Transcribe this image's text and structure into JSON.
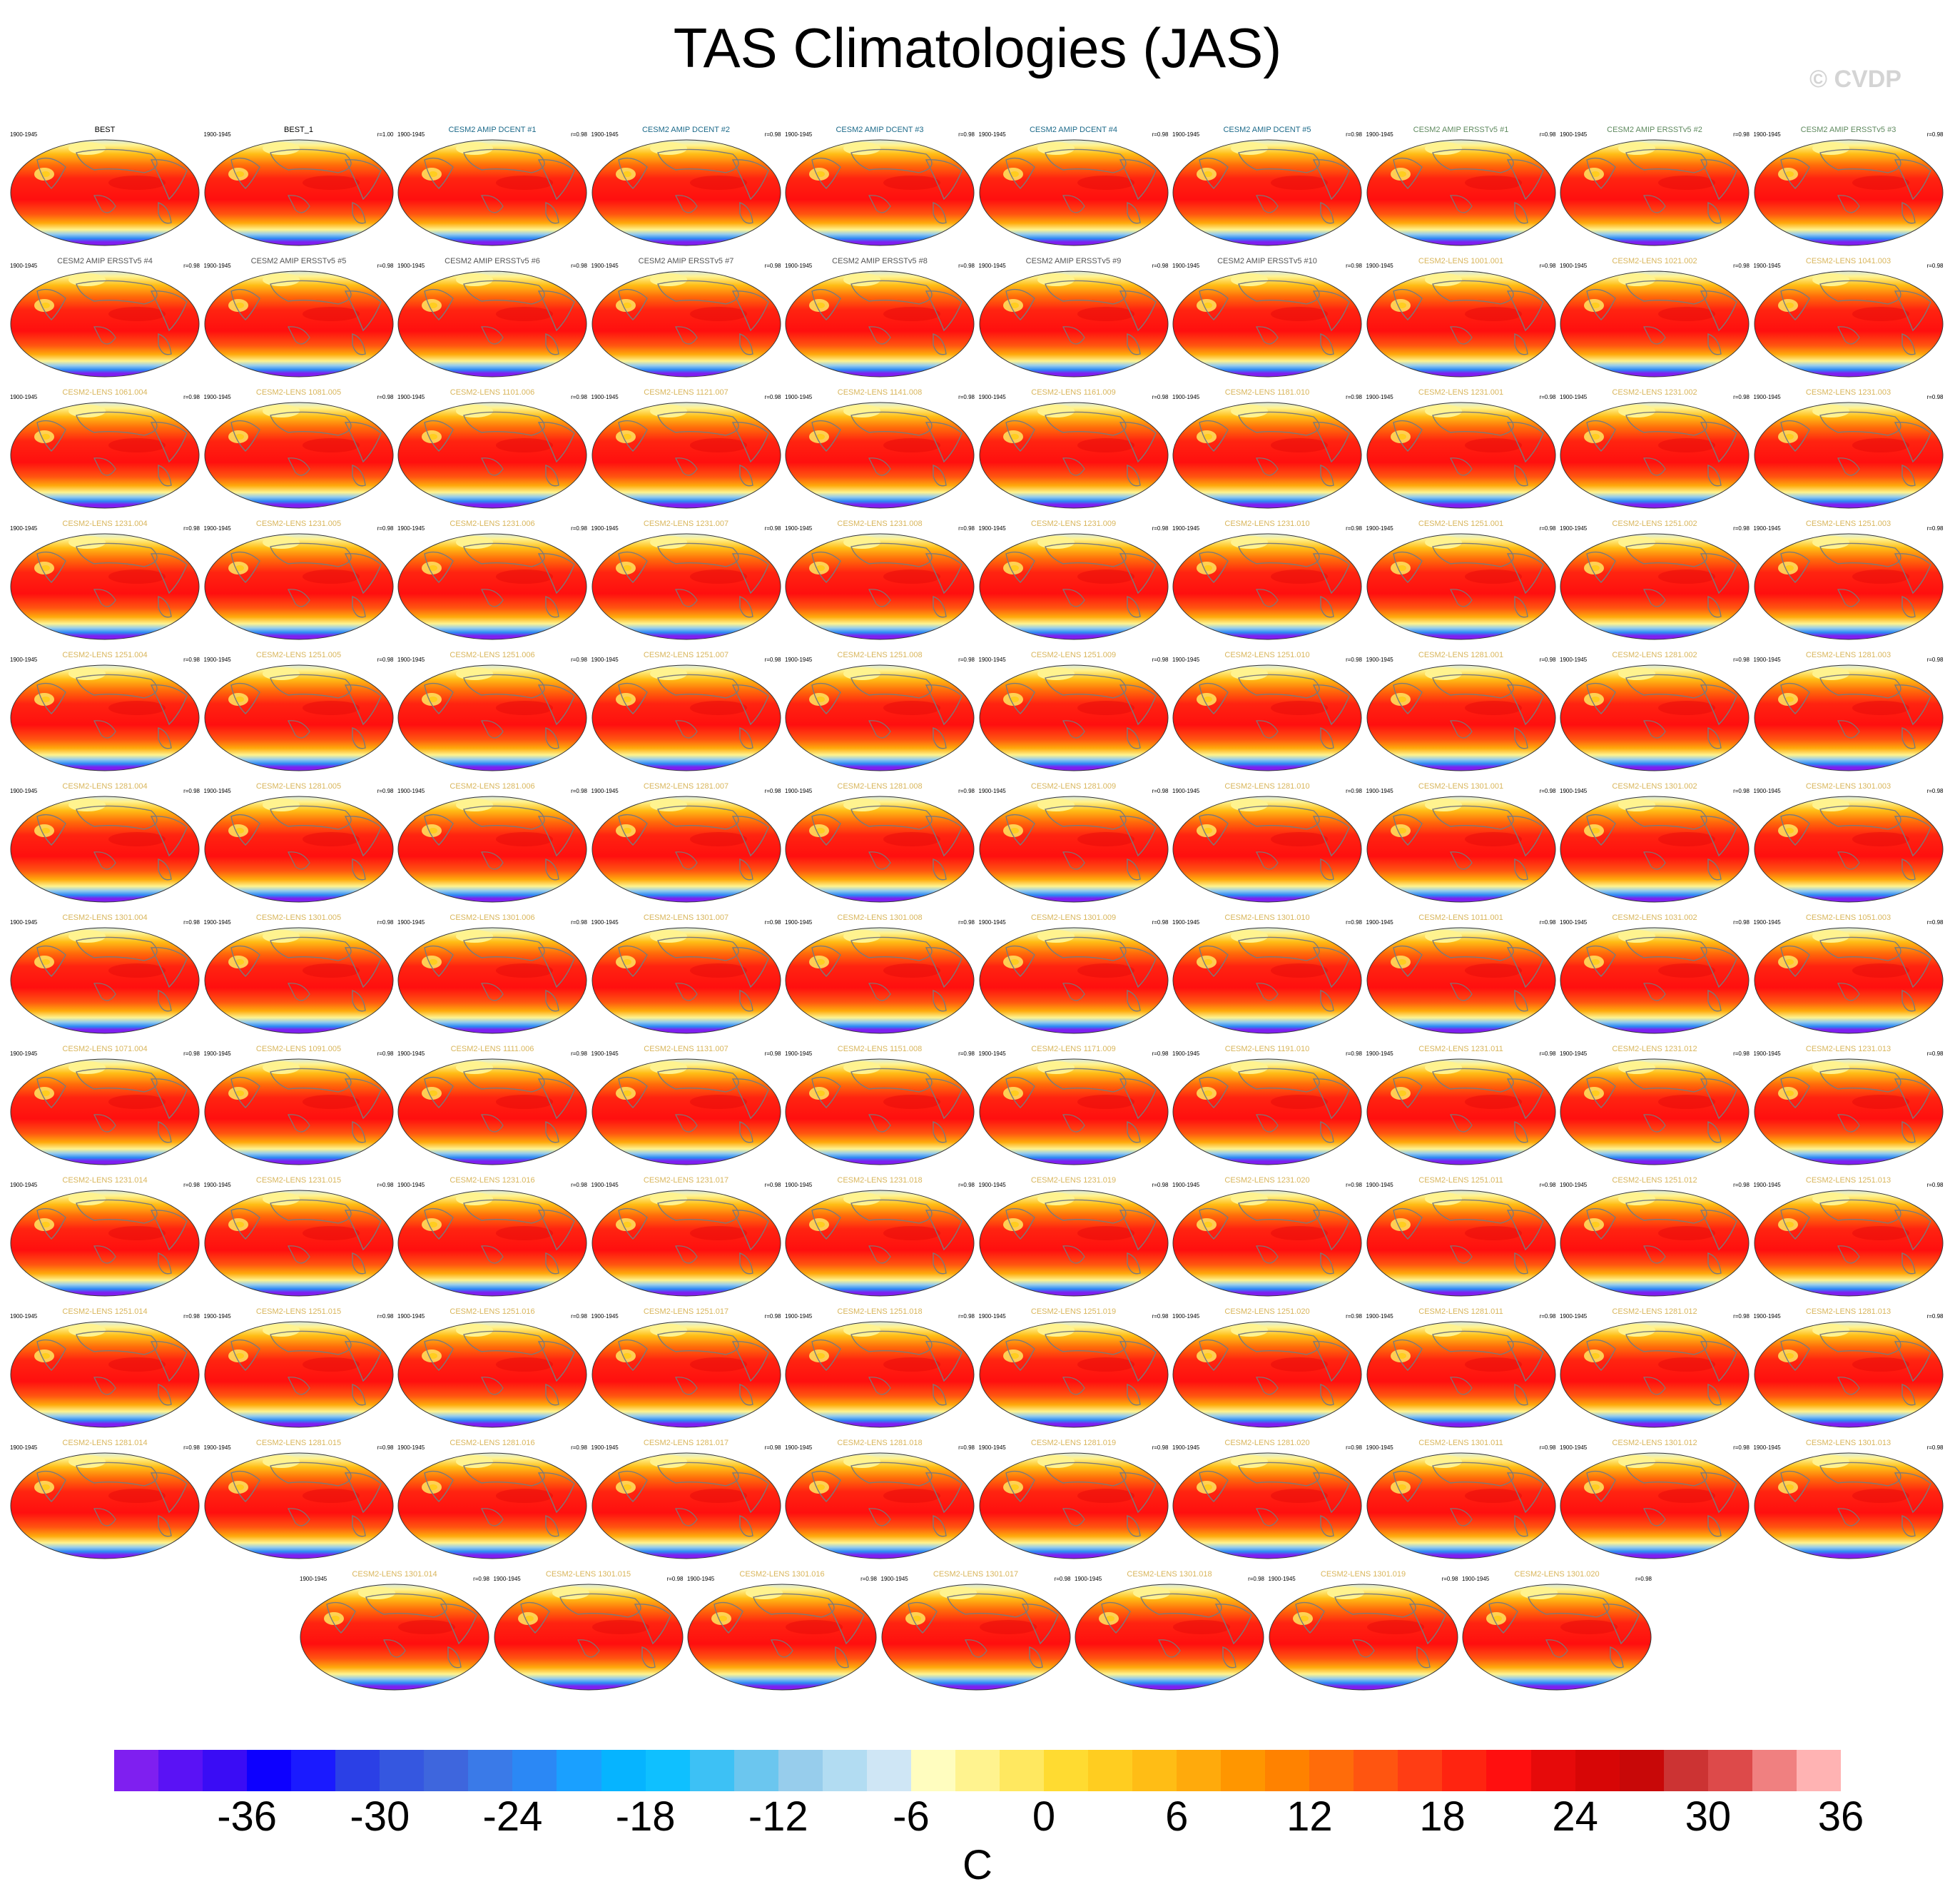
{
  "title": "TAS Climatologies (JAS)",
  "credit": "© CVDP",
  "period": "1900-1945",
  "panels": [
    {
      "title": "BEST",
      "r": "",
      "kind": "obs"
    },
    {
      "title": "BEST_1",
      "r": "r=1.00",
      "kind": "obs"
    },
    {
      "title": "CESM2 AMIP DCENT #1",
      "r": "r=0.98",
      "kind": "dcent"
    },
    {
      "title": "CESM2 AMIP DCENT #2",
      "r": "r=0.98",
      "kind": "dcent"
    },
    {
      "title": "CESM2 AMIP DCENT #3",
      "r": "r=0.98",
      "kind": "dcent"
    },
    {
      "title": "CESM2 AMIP DCENT #4",
      "r": "r=0.98",
      "kind": "dcent"
    },
    {
      "title": "CESM2 AMIP DCENT #5",
      "r": "r=0.98",
      "kind": "dcent"
    },
    {
      "title": "CESM2 AMIP ERSSTv5 #1",
      "r": "r=0.98",
      "kind": "ersst"
    },
    {
      "title": "CESM2 AMIP ERSSTv5 #2",
      "r": "r=0.98",
      "kind": "ersst"
    },
    {
      "title": "CESM2 AMIP ERSSTv5 #3",
      "r": "r=0.98",
      "kind": "ersst"
    },
    {
      "title": "CESM2 AMIP ERSSTv5 #4",
      "r": "r=0.98",
      "kind": "ersst2"
    },
    {
      "title": "CESM2 AMIP ERSSTv5 #5",
      "r": "r=0.98",
      "kind": "ersst2"
    },
    {
      "title": "CESM2 AMIP ERSSTv5 #6",
      "r": "r=0.98",
      "kind": "ersst2"
    },
    {
      "title": "CESM2 AMIP ERSSTv5 #7",
      "r": "r=0.98",
      "kind": "ersst2"
    },
    {
      "title": "CESM2 AMIP ERSSTv5 #8",
      "r": "r=0.98",
      "kind": "ersst2"
    },
    {
      "title": "CESM2 AMIP ERSSTv5 #9",
      "r": "r=0.98",
      "kind": "ersst2"
    },
    {
      "title": "CESM2 AMIP ERSSTv5 #10",
      "r": "r=0.98",
      "kind": "ersst2"
    },
    {
      "title": "CESM2-LENS 1001.001",
      "r": "r=0.98",
      "kind": "lens"
    },
    {
      "title": "CESM2-LENS 1021.002",
      "r": "r=0.98",
      "kind": "lens"
    },
    {
      "title": "CESM2-LENS 1041.003",
      "r": "r=0.98",
      "kind": "lens"
    },
    {
      "title": "CESM2-LENS 1061.004",
      "r": "r=0.98",
      "kind": "lens"
    },
    {
      "title": "CESM2-LENS 1081.005",
      "r": "r=0.98",
      "kind": "lens"
    },
    {
      "title": "CESM2-LENS 1101.006",
      "r": "r=0.98",
      "kind": "lens"
    },
    {
      "title": "CESM2-LENS 1121.007",
      "r": "r=0.98",
      "kind": "lens"
    },
    {
      "title": "CESM2-LENS 1141.008",
      "r": "r=0.98",
      "kind": "lens"
    },
    {
      "title": "CESM2-LENS 1161.009",
      "r": "r=0.98",
      "kind": "lens"
    },
    {
      "title": "CESM2-LENS 1181.010",
      "r": "r=0.98",
      "kind": "lens"
    },
    {
      "title": "CESM2-LENS 1231.001",
      "r": "r=0.98",
      "kind": "lens"
    },
    {
      "title": "CESM2-LENS 1231.002",
      "r": "r=0.98",
      "kind": "lens"
    },
    {
      "title": "CESM2-LENS 1231.003",
      "r": "r=0.98",
      "kind": "lens"
    },
    {
      "title": "CESM2-LENS 1231.004",
      "r": "r=0.98",
      "kind": "lens"
    },
    {
      "title": "CESM2-LENS 1231.005",
      "r": "r=0.98",
      "kind": "lens"
    },
    {
      "title": "CESM2-LENS 1231.006",
      "r": "r=0.98",
      "kind": "lens"
    },
    {
      "title": "CESM2-LENS 1231.007",
      "r": "r=0.98",
      "kind": "lens"
    },
    {
      "title": "CESM2-LENS 1231.008",
      "r": "r=0.98",
      "kind": "lens"
    },
    {
      "title": "CESM2-LENS 1231.009",
      "r": "r=0.98",
      "kind": "lens"
    },
    {
      "title": "CESM2-LENS 1231.010",
      "r": "r=0.98",
      "kind": "lens"
    },
    {
      "title": "CESM2-LENS 1251.001",
      "r": "r=0.98",
      "kind": "lens"
    },
    {
      "title": "CESM2-LENS 1251.002",
      "r": "r=0.98",
      "kind": "lens"
    },
    {
      "title": "CESM2-LENS 1251.003",
      "r": "r=0.98",
      "kind": "lens"
    },
    {
      "title": "CESM2-LENS 1251.004",
      "r": "r=0.98",
      "kind": "lens"
    },
    {
      "title": "CESM2-LENS 1251.005",
      "r": "r=0.98",
      "kind": "lens"
    },
    {
      "title": "CESM2-LENS 1251.006",
      "r": "r=0.98",
      "kind": "lens"
    },
    {
      "title": "CESM2-LENS 1251.007",
      "r": "r=0.98",
      "kind": "lens"
    },
    {
      "title": "CESM2-LENS 1251.008",
      "r": "r=0.98",
      "kind": "lens"
    },
    {
      "title": "CESM2-LENS 1251.009",
      "r": "r=0.98",
      "kind": "lens"
    },
    {
      "title": "CESM2-LENS 1251.010",
      "r": "r=0.98",
      "kind": "lens"
    },
    {
      "title": "CESM2-LENS 1281.001",
      "r": "r=0.98",
      "kind": "lens"
    },
    {
      "title": "CESM2-LENS 1281.002",
      "r": "r=0.98",
      "kind": "lens"
    },
    {
      "title": "CESM2-LENS 1281.003",
      "r": "r=0.98",
      "kind": "lens"
    },
    {
      "title": "CESM2-LENS 1281.004",
      "r": "r=0.98",
      "kind": "lens"
    },
    {
      "title": "CESM2-LENS 1281.005",
      "r": "r=0.98",
      "kind": "lens"
    },
    {
      "title": "CESM2-LENS 1281.006",
      "r": "r=0.98",
      "kind": "lens"
    },
    {
      "title": "CESM2-LENS 1281.007",
      "r": "r=0.98",
      "kind": "lens"
    },
    {
      "title": "CESM2-LENS 1281.008",
      "r": "r=0.98",
      "kind": "lens"
    },
    {
      "title": "CESM2-LENS 1281.009",
      "r": "r=0.98",
      "kind": "lens"
    },
    {
      "title": "CESM2-LENS 1281.010",
      "r": "r=0.98",
      "kind": "lens"
    },
    {
      "title": "CESM2-LENS 1301.001",
      "r": "r=0.98",
      "kind": "lens"
    },
    {
      "title": "CESM2-LENS 1301.002",
      "r": "r=0.98",
      "kind": "lens"
    },
    {
      "title": "CESM2-LENS 1301.003",
      "r": "r=0.98",
      "kind": "lens"
    },
    {
      "title": "CESM2-LENS 1301.004",
      "r": "r=0.98",
      "kind": "lens"
    },
    {
      "title": "CESM2-LENS 1301.005",
      "r": "r=0.98",
      "kind": "lens"
    },
    {
      "title": "CESM2-LENS 1301.006",
      "r": "r=0.98",
      "kind": "lens"
    },
    {
      "title": "CESM2-LENS 1301.007",
      "r": "r=0.98",
      "kind": "lens"
    },
    {
      "title": "CESM2-LENS 1301.008",
      "r": "r=0.98",
      "kind": "lens"
    },
    {
      "title": "CESM2-LENS 1301.009",
      "r": "r=0.98",
      "kind": "lens"
    },
    {
      "title": "CESM2-LENS 1301.010",
      "r": "r=0.98",
      "kind": "lens"
    },
    {
      "title": "CESM2-LENS 1011.001",
      "r": "r=0.98",
      "kind": "lens"
    },
    {
      "title": "CESM2-LENS 1031.002",
      "r": "r=0.98",
      "kind": "lens"
    },
    {
      "title": "CESM2-LENS 1051.003",
      "r": "r=0.98",
      "kind": "lens"
    },
    {
      "title": "CESM2-LENS 1071.004",
      "r": "r=0.98",
      "kind": "lens"
    },
    {
      "title": "CESM2-LENS 1091.005",
      "r": "r=0.98",
      "kind": "lens"
    },
    {
      "title": "CESM2-LENS 1111.006",
      "r": "r=0.98",
      "kind": "lens"
    },
    {
      "title": "CESM2-LENS 1131.007",
      "r": "r=0.98",
      "kind": "lens"
    },
    {
      "title": "CESM2-LENS 1151.008",
      "r": "r=0.98",
      "kind": "lens"
    },
    {
      "title": "CESM2-LENS 1171.009",
      "r": "r=0.98",
      "kind": "lens"
    },
    {
      "title": "CESM2-LENS 1191.010",
      "r": "r=0.98",
      "kind": "lens"
    },
    {
      "title": "CESM2-LENS 1231.011",
      "r": "r=0.98",
      "kind": "lens"
    },
    {
      "title": "CESM2-LENS 1231.012",
      "r": "r=0.98",
      "kind": "lens"
    },
    {
      "title": "CESM2-LENS 1231.013",
      "r": "r=0.98",
      "kind": "lens"
    },
    {
      "title": "CESM2-LENS 1231.014",
      "r": "r=0.98",
      "kind": "lens"
    },
    {
      "title": "CESM2-LENS 1231.015",
      "r": "r=0.98",
      "kind": "lens"
    },
    {
      "title": "CESM2-LENS 1231.016",
      "r": "r=0.98",
      "kind": "lens"
    },
    {
      "title": "CESM2-LENS 1231.017",
      "r": "r=0.98",
      "kind": "lens"
    },
    {
      "title": "CESM2-LENS 1231.018",
      "r": "r=0.98",
      "kind": "lens"
    },
    {
      "title": "CESM2-LENS 1231.019",
      "r": "r=0.98",
      "kind": "lens"
    },
    {
      "title": "CESM2-LENS 1231.020",
      "r": "r=0.98",
      "kind": "lens"
    },
    {
      "title": "CESM2-LENS 1251.011",
      "r": "r=0.98",
      "kind": "lens"
    },
    {
      "title": "CESM2-LENS 1251.012",
      "r": "r=0.98",
      "kind": "lens"
    },
    {
      "title": "CESM2-LENS 1251.013",
      "r": "r=0.98",
      "kind": "lens"
    },
    {
      "title": "CESM2-LENS 1251.014",
      "r": "r=0.98",
      "kind": "lens"
    },
    {
      "title": "CESM2-LENS 1251.015",
      "r": "r=0.98",
      "kind": "lens"
    },
    {
      "title": "CESM2-LENS 1251.016",
      "r": "r=0.98",
      "kind": "lens"
    },
    {
      "title": "CESM2-LENS 1251.017",
      "r": "r=0.98",
      "kind": "lens"
    },
    {
      "title": "CESM2-LENS 1251.018",
      "r": "r=0.98",
      "kind": "lens"
    },
    {
      "title": "CESM2-LENS 1251.019",
      "r": "r=0.98",
      "kind": "lens"
    },
    {
      "title": "CESM2-LENS 1251.020",
      "r": "r=0.98",
      "kind": "lens"
    },
    {
      "title": "CESM2-LENS 1281.011",
      "r": "r=0.98",
      "kind": "lens"
    },
    {
      "title": "CESM2-LENS 1281.012",
      "r": "r=0.98",
      "kind": "lens"
    },
    {
      "title": "CESM2-LENS 1281.013",
      "r": "r=0.98",
      "kind": "lens"
    },
    {
      "title": "CESM2-LENS 1281.014",
      "r": "r=0.98",
      "kind": "lens"
    },
    {
      "title": "CESM2-LENS 1281.015",
      "r": "r=0.98",
      "kind": "lens"
    },
    {
      "title": "CESM2-LENS 1281.016",
      "r": "r=0.98",
      "kind": "lens"
    },
    {
      "title": "CESM2-LENS 1281.017",
      "r": "r=0.98",
      "kind": "lens"
    },
    {
      "title": "CESM2-LENS 1281.018",
      "r": "r=0.98",
      "kind": "lens"
    },
    {
      "title": "CESM2-LENS 1281.019",
      "r": "r=0.98",
      "kind": "lens"
    },
    {
      "title": "CESM2-LENS 1281.020",
      "r": "r=0.98",
      "kind": "lens"
    },
    {
      "title": "CESM2-LENS 1301.011",
      "r": "r=0.98",
      "kind": "lens"
    },
    {
      "title": "CESM2-LENS 1301.012",
      "r": "r=0.98",
      "kind": "lens"
    },
    {
      "title": "CESM2-LENS 1301.013",
      "r": "r=0.98",
      "kind": "lens"
    },
    {
      "title": "CESM2-LENS 1301.014",
      "r": "r=0.98",
      "kind": "lens"
    },
    {
      "title": "CESM2-LENS 1301.015",
      "r": "r=0.98",
      "kind": "lens"
    },
    {
      "title": "CESM2-LENS 1301.016",
      "r": "r=0.98",
      "kind": "lens"
    },
    {
      "title": "CESM2-LENS 1301.017",
      "r": "r=0.98",
      "kind": "lens"
    },
    {
      "title": "CESM2-LENS 1301.018",
      "r": "r=0.98",
      "kind": "lens"
    },
    {
      "title": "CESM2-LENS 1301.019",
      "r": "r=0.98",
      "kind": "lens"
    },
    {
      "title": "CESM2-LENS 1301.020",
      "r": "r=0.98",
      "kind": "lens"
    }
  ],
  "title_colors": {
    "obs": "#000000",
    "dcent": "#1c6a8a",
    "ersst": "#5f8a5f",
    "ersst2": "#555555",
    "lens": "#d9b65c"
  },
  "colorbar": {
    "unit": "C",
    "colors": [
      "#7f1ff0",
      "#5a12f5",
      "#3a0cf5",
      "#0d00ff",
      "#1a1aff",
      "#2b40e6",
      "#3557e0",
      "#3e66dd",
      "#3a7ae8",
      "#2b88f5",
      "#1aa0ff",
      "#06b4ff",
      "#0fc0ff",
      "#3dc1f5",
      "#6bc6ef",
      "#97cdec",
      "#b2dcf2",
      "#cfe6f5",
      "#fffdbf",
      "#fff38f",
      "#ffe860",
      "#ffdb31",
      "#ffcd20",
      "#ffbd15",
      "#ffaa0c",
      "#ff9600",
      "#ff8200",
      "#ff6c0a",
      "#ff5510",
      "#ff3d14",
      "#ff2410",
      "#ff0f0f",
      "#e60a0a",
      "#d70606",
      "#c80808",
      "#cc3333",
      "#dd4a4a",
      "#f08080",
      "#ffb3b3"
    ],
    "ticks": [
      "-36",
      "-30",
      "-24",
      "-18",
      "-12",
      "-6",
      "0",
      "6",
      "12",
      "18",
      "24",
      "30",
      "36"
    ]
  }
}
